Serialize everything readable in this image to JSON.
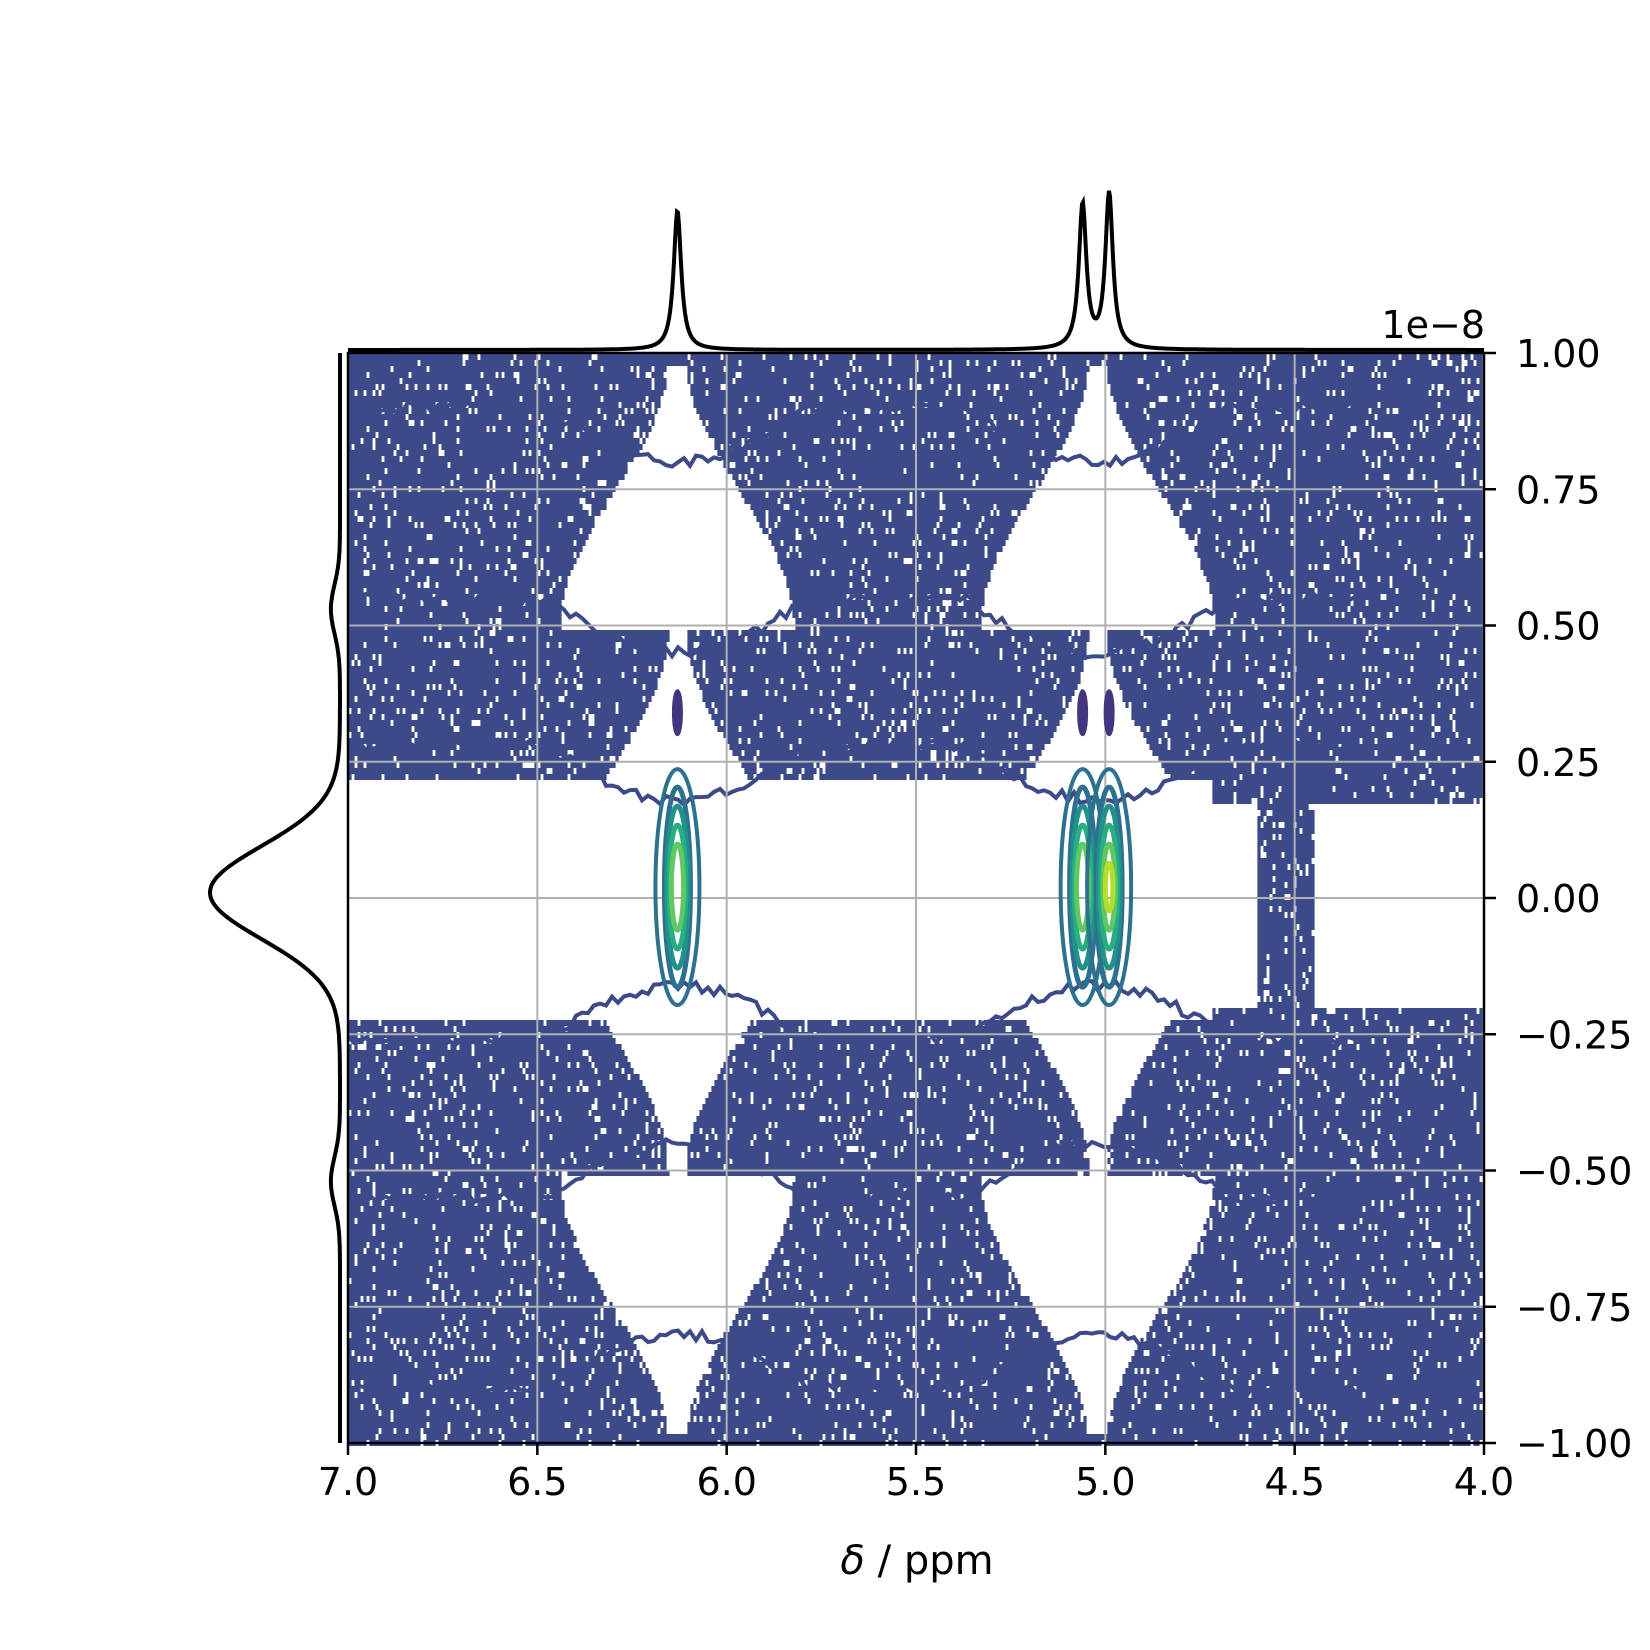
{
  "chart_data": {
    "type": "contour",
    "title": "",
    "xlabel_symbol": "δ",
    "xlabel_rest": " / ppm",
    "xlim": [
      7.0,
      4.0
    ],
    "ylim": [
      -1.0,
      1.0
    ],
    "y_offset_text": "1e−8",
    "x_ticks": [
      7.0,
      6.5,
      6.0,
      5.5,
      5.0,
      4.5,
      4.0
    ],
    "x_tick_labels": [
      "7.0",
      "6.5",
      "6.0",
      "5.5",
      "5.0",
      "4.5",
      "4.0"
    ],
    "y_ticks": [
      1.0,
      0.75,
      0.5,
      0.25,
      0.0,
      -0.25,
      -0.5,
      -0.75,
      -1.0
    ],
    "y_tick_labels": [
      "1.00",
      "0.75",
      "0.50",
      "0.25",
      "0.00",
      "−0.25",
      "−0.50",
      "−0.75",
      "−1.00"
    ],
    "grid": true,
    "colors": {
      "noise": "#3d4a89",
      "low": "#433580",
      "mid1": "#2c728e",
      "mid2": "#21918c",
      "mid3": "#28ae80",
      "high": "#5ec962",
      "peak": "#b5de2b",
      "projection": "#000000",
      "grid": "#b0b0b0"
    },
    "peaks": [
      {
        "x": 6.13,
        "y": 0.02,
        "intensity": 0.85
      },
      {
        "x": 5.06,
        "y": 0.02,
        "intensity": 0.85
      },
      {
        "x": 4.99,
        "y": 0.02,
        "intensity": 1.0
      }
    ],
    "secondary_peaks": [
      {
        "x": 6.13,
        "y": 0.34
      },
      {
        "x": 5.06,
        "y": 0.34
      },
      {
        "x": 4.99,
        "y": 0.34
      }
    ],
    "top_projection": {
      "peaks": [
        {
          "x": 6.13,
          "height": 0.9
        },
        {
          "x": 5.06,
          "height": 0.93
        },
        {
          "x": 4.99,
          "height": 1.0
        }
      ],
      "width_ppm": 0.012
    },
    "left_projection": {
      "center": 0.01,
      "sigma": 0.085,
      "amplitude": 1.0
    }
  }
}
